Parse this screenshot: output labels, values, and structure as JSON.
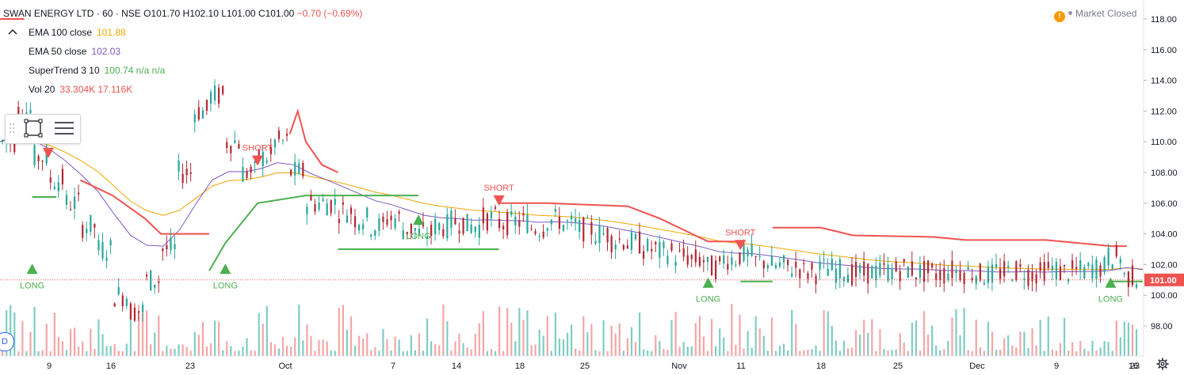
{
  "header": {
    "symbol": "SWAN ENERGY LTD · 60 · NSE",
    "ohlc": "O101.70  H102.10  L101.00  C101.00",
    "change": "−0.70 (−0.69%)"
  },
  "indicators": [
    {
      "name": "EMA 100 close",
      "value": "101.88",
      "color": "#f0a500"
    },
    {
      "name": "EMA 50 close",
      "value": "102.03",
      "color": "#7e57c2"
    },
    {
      "name": "SuperTrend 3 10",
      "value": "100.74  n/a  n/a",
      "color": "#4caf50"
    },
    {
      "name": "Vol 20",
      "value": "33.304K  17.116K",
      "color": "#ef5350"
    }
  ],
  "status": {
    "market": "Market Closed"
  },
  "badges": {
    "d": "D"
  },
  "colors": {
    "up": "#26a69a",
    "down": "#b22833",
    "trend_up": "#4caf50",
    "trend_down": "#f05350",
    "ema100": "#f0a500",
    "ema50": "#7e57c2",
    "price_tag": "#ef5350",
    "vol_up": "#7fcdc4",
    "vol_down": "#f4a6a6"
  },
  "chart_data": {
    "type": "candlestick",
    "y_ticks": [
      "118.00",
      "116.00",
      "114.00",
      "112.00",
      "110.00",
      "108.00",
      "106.00",
      "104.00",
      "102.00",
      "100.00",
      "98.00"
    ],
    "ylim": [
      97.0,
      118.0
    ],
    "x_ticks": [
      "9",
      "16",
      "23",
      "Oct",
      "7",
      "14",
      "18",
      "25",
      "Nov",
      "11",
      "18",
      "25",
      "Dec",
      "9",
      "16",
      "23"
    ],
    "last_price": "101.00",
    "signals": [
      {
        "label": "LONG",
        "kind": "long",
        "x_index": 2,
        "y": 101.8
      },
      {
        "label": "SHORT",
        "kind": "short",
        "x_index": 3,
        "y": 109.5
      },
      {
        "label": "LONG",
        "kind": "long",
        "x_index": 14,
        "y": 101.8
      },
      {
        "label": "SHORT",
        "kind": "short",
        "x_index": 16,
        "y": 109.0
      },
      {
        "label": "LONG",
        "kind": "long",
        "x_index": 26,
        "y": 105.0
      },
      {
        "label": "SHORT",
        "kind": "short",
        "x_index": 31,
        "y": 106.4
      },
      {
        "label": "LONG",
        "kind": "long",
        "x_index": 44,
        "y": 100.9
      },
      {
        "label": "SHORT",
        "kind": "short",
        "x_index": 46,
        "y": 103.5
      },
      {
        "label": "LONG",
        "kind": "long",
        "x_index": 69,
        "y": 100.9
      }
    ],
    "supertrend": [
      {
        "x": [
          0,
          1.5
        ],
        "y": [
          118.0,
          118.0
        ],
        "trend": "down"
      },
      {
        "x": [
          2,
          3.5
        ],
        "y": [
          106.4,
          106.4
        ],
        "trend": "up"
      },
      {
        "x": [
          5,
          7,
          9,
          10,
          13
        ],
        "y": [
          107.5,
          106.5,
          105.0,
          104.0,
          104.0
        ],
        "trend": "down"
      },
      {
        "x": [
          13,
          14,
          16,
          19,
          22,
          26
        ],
        "y": [
          101.6,
          103.4,
          106.0,
          106.5,
          106.5,
          106.5
        ],
        "trend": "up"
      },
      {
        "x": [
          18,
          18.5,
          19,
          20,
          21
        ],
        "y": [
          110.5,
          112.0,
          110.0,
          108.5,
          108.0
        ],
        "trend": "down"
      },
      {
        "x": [
          21,
          25,
          29,
          31
        ],
        "y": [
          103.0,
          103.0,
          103.0,
          103.0
        ],
        "trend": "up"
      },
      {
        "x": [
          31,
          34,
          39,
          40,
          41,
          43,
          44,
          46
        ],
        "y": [
          106.0,
          106.0,
          105.8,
          105.4,
          105.0,
          104.0,
          103.5,
          103.5
        ],
        "trend": "down"
      },
      {
        "x": [
          46,
          48
        ],
        "y": [
          100.9,
          100.9
        ],
        "trend": "up"
      },
      {
        "x": [
          48,
          51,
          53,
          58,
          60,
          65,
          69,
          70
        ],
        "y": [
          104.4,
          104.4,
          103.9,
          103.8,
          103.6,
          103.6,
          103.2,
          103.2
        ],
        "trend": "down"
      },
      {
        "x": [
          69,
          71
        ],
        "y": [
          100.9,
          100.9
        ],
        "trend": "up"
      }
    ]
  }
}
